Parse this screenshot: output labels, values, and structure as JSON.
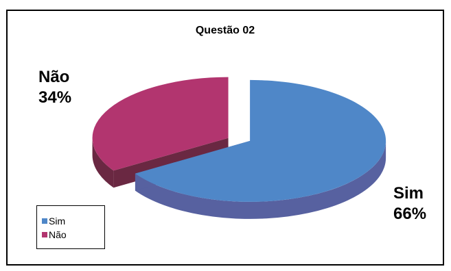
{
  "chart_data": {
    "type": "pie",
    "title": "Questão 02",
    "categories": [
      "Sim",
      "Não"
    ],
    "values": [
      66,
      34
    ],
    "labels": [
      {
        "name": "Sim",
        "percent": "66%"
      },
      {
        "name": "Não",
        "percent": "34%"
      }
    ],
    "colors": {
      "Sim": {
        "top": "#4f87c8",
        "side": "#5761a0"
      },
      "Não": {
        "top": "#b2356f",
        "side": "#6a2842"
      }
    },
    "style": "3d-exploded",
    "legend": {
      "placement": "bottom-left",
      "entries": [
        "Sim",
        "Não"
      ]
    }
  }
}
